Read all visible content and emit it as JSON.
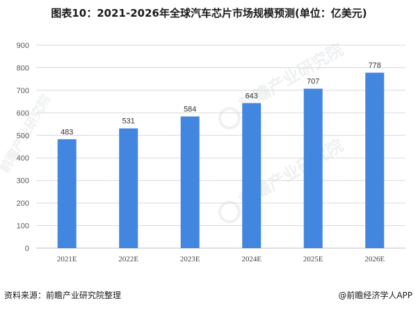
{
  "chart_data": {
    "type": "bar",
    "title": "图表10：2021-2026年全球汽车芯片市场规模预测(单位：亿美元)",
    "categories": [
      "2021E",
      "2022E",
      "2023E",
      "2024E",
      "2025E",
      "2026E"
    ],
    "values": [
      483,
      531,
      584,
      643,
      707,
      778
    ],
    "ylim": [
      0,
      900
    ],
    "yticks": [
      0,
      100,
      200,
      300,
      400,
      500,
      600,
      700,
      800,
      900
    ],
    "grid": true,
    "data_labels": true,
    "bar_color": "#4286e0",
    "gridline_color": "#d9d9d9"
  },
  "footer": {
    "source": "资料来源：前瞻产业研究院整理",
    "brand": "@前瞻经济学人APP"
  },
  "watermark": {
    "text": "前瞻产业研究院"
  }
}
